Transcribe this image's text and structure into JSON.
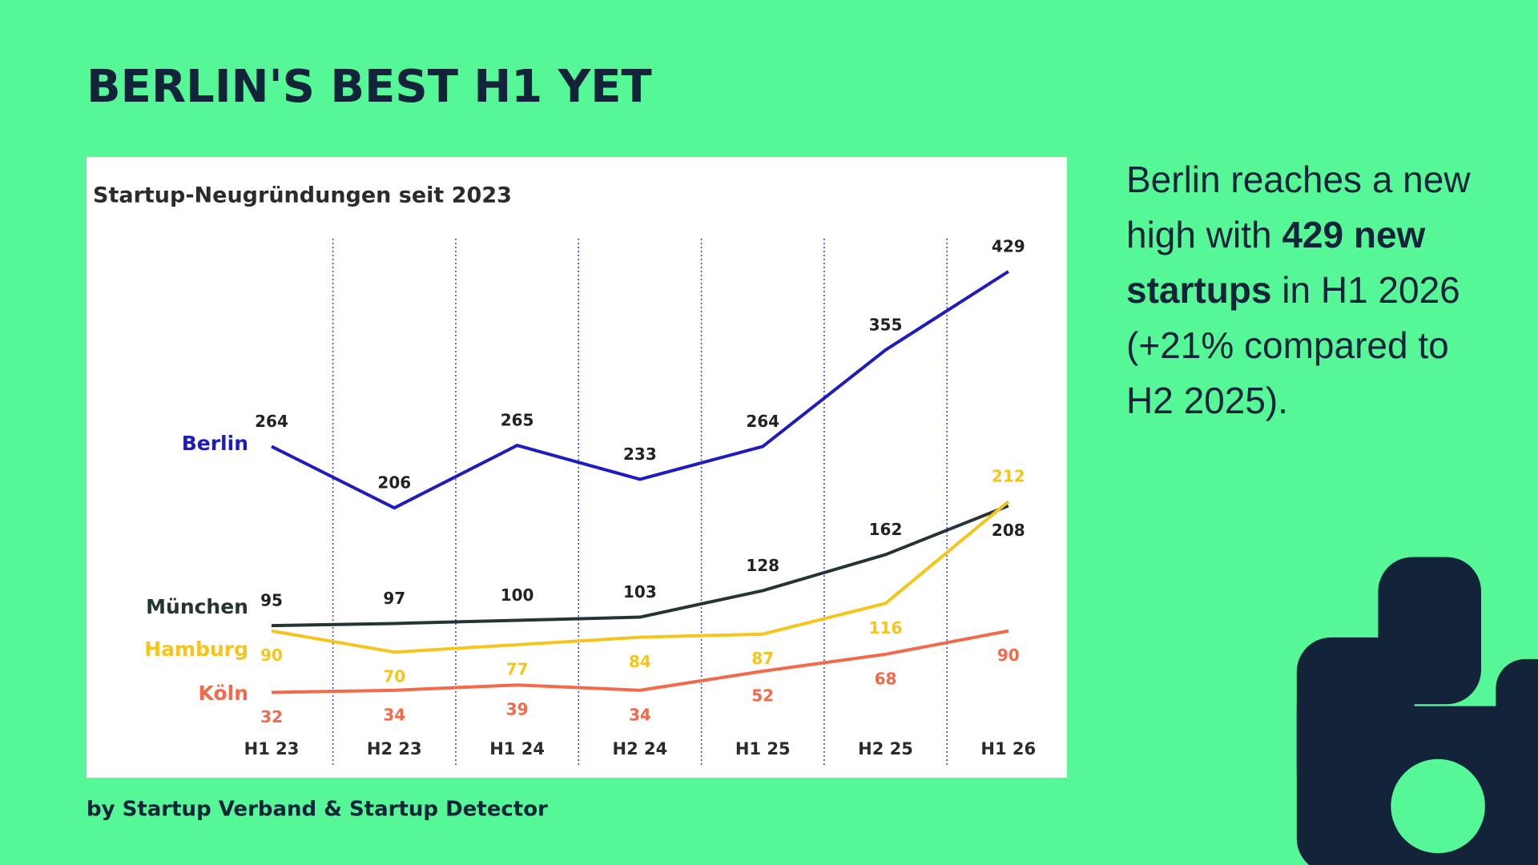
{
  "title": "BERLIN'S BEST H1 YET",
  "description": [
    "Berlin reaches a new high with ",
    "429 new startups",
    " in H1 2026 (+21% compared to H2 2025)."
  ],
  "source": "by Startup Verband & Startup Detector",
  "chart_data": {
    "type": "line",
    "title": "Startup-Neugründungen seit 2023",
    "categories": [
      "H1 23",
      "H2 23",
      "H1 24",
      "H2 24",
      "H1 25",
      "H2 25",
      "H1 26"
    ],
    "series": [
      {
        "name": "Berlin",
        "color": "#1c1cc0",
        "label_color": "#222222",
        "label_position": "above",
        "values": [
          264,
          206,
          265,
          233,
          264,
          355,
          429
        ]
      },
      {
        "name": "München",
        "color": "#253535",
        "label_color": "#222222",
        "label_position": "above",
        "values": [
          95,
          97,
          100,
          103,
          128,
          162,
          208
        ]
      },
      {
        "name": "Hamburg",
        "color": "#f6c51b",
        "label_color": "#f6c51b",
        "label_position": "below",
        "values": [
          90,
          70,
          77,
          84,
          87,
          116,
          212
        ]
      },
      {
        "name": "Köln",
        "color": "#f26a4a",
        "label_color": "#f26a4a",
        "label_position": "below",
        "values": [
          32,
          34,
          39,
          34,
          52,
          68,
          90
        ]
      }
    ],
    "grid": false,
    "legend": "left"
  }
}
